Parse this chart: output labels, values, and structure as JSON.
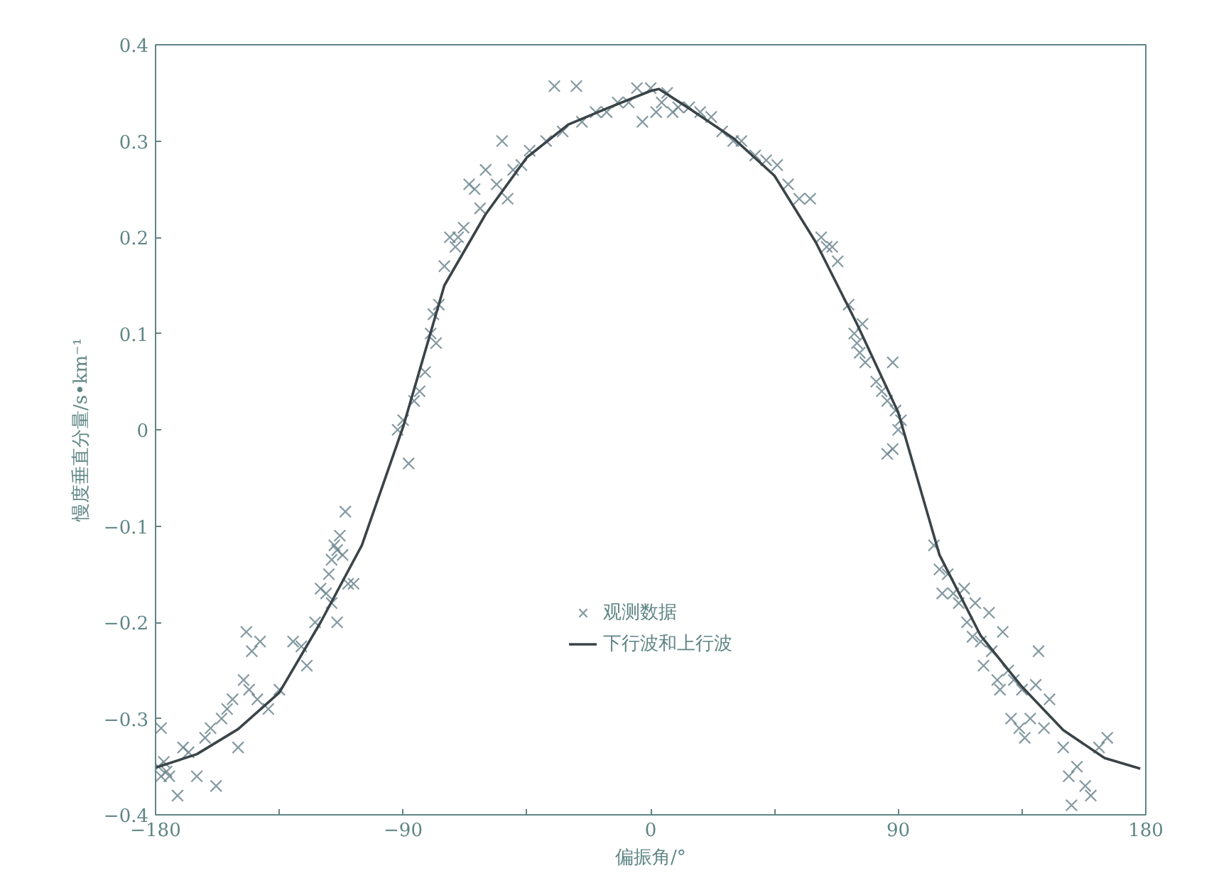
{
  "chart_data": {
    "type": "scatter",
    "xlabel": "偏振角/°",
    "ylabel": "慢度垂直分量/s•km⁻¹",
    "xlim": [
      -180,
      180
    ],
    "ylim": [
      -0.4,
      0.4
    ],
    "xticks": [
      {
        "value": -180,
        "label": "−180"
      },
      {
        "value": -135,
        "label": null
      },
      {
        "value": -90,
        "label": "−90"
      },
      {
        "value": -45,
        "label": null
      },
      0,
      {
        "value": 45,
        "label": null
      },
      90,
      {
        "value": 135,
        "label": null
      },
      180
    ],
    "yticks": [
      {
        "value": -0.4,
        "label": "−0.4"
      },
      {
        "value": -0.3,
        "label": "−0.3"
      },
      {
        "value": -0.2,
        "label": "−0.2"
      },
      {
        "value": -0.1,
        "label": "−0.1"
      },
      0,
      0.1,
      0.2,
      0.3,
      0.4
    ],
    "grid": false,
    "legend": "bottom",
    "series": [
      {
        "name": "观测数据",
        "color": "#6f8790",
        "marker": "cross",
        "x": [
          -179,
          -178,
          -177,
          -176,
          -175,
          -178,
          -172,
          -170,
          -168,
          -165,
          -162,
          -160,
          -158,
          -156,
          -154,
          -152,
          -150,
          -148,
          -147,
          -146,
          -145,
          -143,
          -142,
          -139,
          -135,
          -130,
          -127,
          -125,
          -122,
          -120,
          -118,
          -117,
          -116,
          -115,
          -114,
          -113,
          -112,
          -111,
          -110,
          -108,
          -116,
          -114,
          -92,
          -90,
          -88,
          -86,
          -84,
          -82,
          -80,
          -79,
          -78,
          -77,
          -75,
          -73,
          -71,
          -70,
          -68,
          -66,
          -64,
          -62,
          -60,
          -56,
          -54,
          -52,
          -50,
          -47,
          -44,
          -35,
          -27,
          -38,
          -32,
          -25,
          -20,
          -16,
          -12,
          -8,
          -5,
          -3,
          0,
          2,
          4,
          6,
          8,
          10,
          14,
          18,
          22,
          26,
          30,
          33,
          38,
          42,
          46,
          50,
          54,
          58,
          62,
          64,
          66,
          68,
          72,
          74,
          75,
          76,
          77,
          78,
          82,
          84,
          86,
          88,
          89,
          90,
          91,
          86,
          88,
          103,
          105,
          106,
          108,
          110,
          112,
          114,
          115,
          117,
          118,
          120,
          121,
          123,
          124,
          126,
          127,
          128,
          130,
          131,
          132,
          134,
          135,
          136,
          138,
          140,
          141,
          143,
          145,
          150,
          152,
          155,
          158,
          160,
          153,
          163,
          166
        ],
        "values": [
          -0.35,
          -0.36,
          -0.345,
          -0.355,
          -0.36,
          -0.31,
          -0.38,
          -0.33,
          -0.335,
          -0.36,
          -0.32,
          -0.31,
          -0.37,
          -0.3,
          -0.29,
          -0.28,
          -0.33,
          -0.26,
          -0.21,
          -0.27,
          -0.23,
          -0.28,
          -0.22,
          -0.29,
          -0.27,
          -0.22,
          -0.225,
          -0.245,
          -0.2,
          -0.165,
          -0.17,
          -0.15,
          -0.18,
          -0.12,
          -0.2,
          -0.11,
          -0.13,
          -0.085,
          -0.16,
          -0.16,
          -0.135,
          -0.125,
          0.0,
          0.01,
          -0.035,
          0.03,
          0.04,
          0.06,
          0.1,
          0.12,
          0.09,
          0.13,
          0.17,
          0.2,
          0.19,
          0.2,
          0.21,
          0.255,
          0.25,
          0.23,
          0.27,
          0.255,
          0.3,
          0.24,
          0.27,
          0.275,
          0.29,
          0.357,
          0.357,
          0.3,
          0.31,
          0.32,
          0.33,
          0.33,
          0.34,
          0.34,
          0.355,
          0.32,
          0.355,
          0.33,
          0.34,
          0.35,
          0.33,
          0.335,
          0.335,
          0.33,
          0.325,
          0.31,
          0.3,
          0.3,
          0.285,
          0.28,
          0.275,
          0.255,
          0.24,
          0.24,
          0.2,
          0.19,
          0.19,
          0.175,
          0.13,
          0.1,
          0.09,
          0.08,
          0.11,
          0.07,
          0.05,
          0.04,
          0.03,
          0.07,
          0.02,
          0.0,
          0.01,
          -0.025,
          -0.02,
          -0.12,
          -0.145,
          -0.17,
          -0.15,
          -0.17,
          -0.18,
          -0.165,
          -0.2,
          -0.215,
          -0.18,
          -0.22,
          -0.245,
          -0.19,
          -0.23,
          -0.26,
          -0.27,
          -0.21,
          -0.25,
          -0.3,
          -0.26,
          -0.31,
          -0.27,
          -0.32,
          -0.3,
          -0.265,
          -0.23,
          -0.31,
          -0.28,
          -0.33,
          -0.36,
          -0.35,
          -0.37,
          -0.38,
          -0.39,
          -0.33,
          -0.32
        ]
      },
      {
        "name": "下行波和上行波",
        "type": "line",
        "color": "#3a4448",
        "line_style": "solid",
        "marker": "none",
        "x": [
          -180,
          -165,
          -150,
          -135,
          -120,
          -105,
          -90,
          -75,
          -60,
          -45,
          -30,
          -15,
          0,
          3,
          15,
          30,
          45,
          60,
          75,
          90,
          105,
          120,
          135,
          150,
          165,
          178
        ],
        "values": [
          -0.351,
          -0.337,
          -0.311,
          -0.273,
          -0.2,
          -0.12,
          0.003,
          0.15,
          0.224,
          0.283,
          0.317,
          0.335,
          0.352,
          0.354,
          0.332,
          0.303,
          0.264,
          0.195,
          0.11,
          0.018,
          -0.13,
          -0.214,
          -0.267,
          -0.312,
          -0.341,
          -0.352
        ]
      }
    ]
  }
}
